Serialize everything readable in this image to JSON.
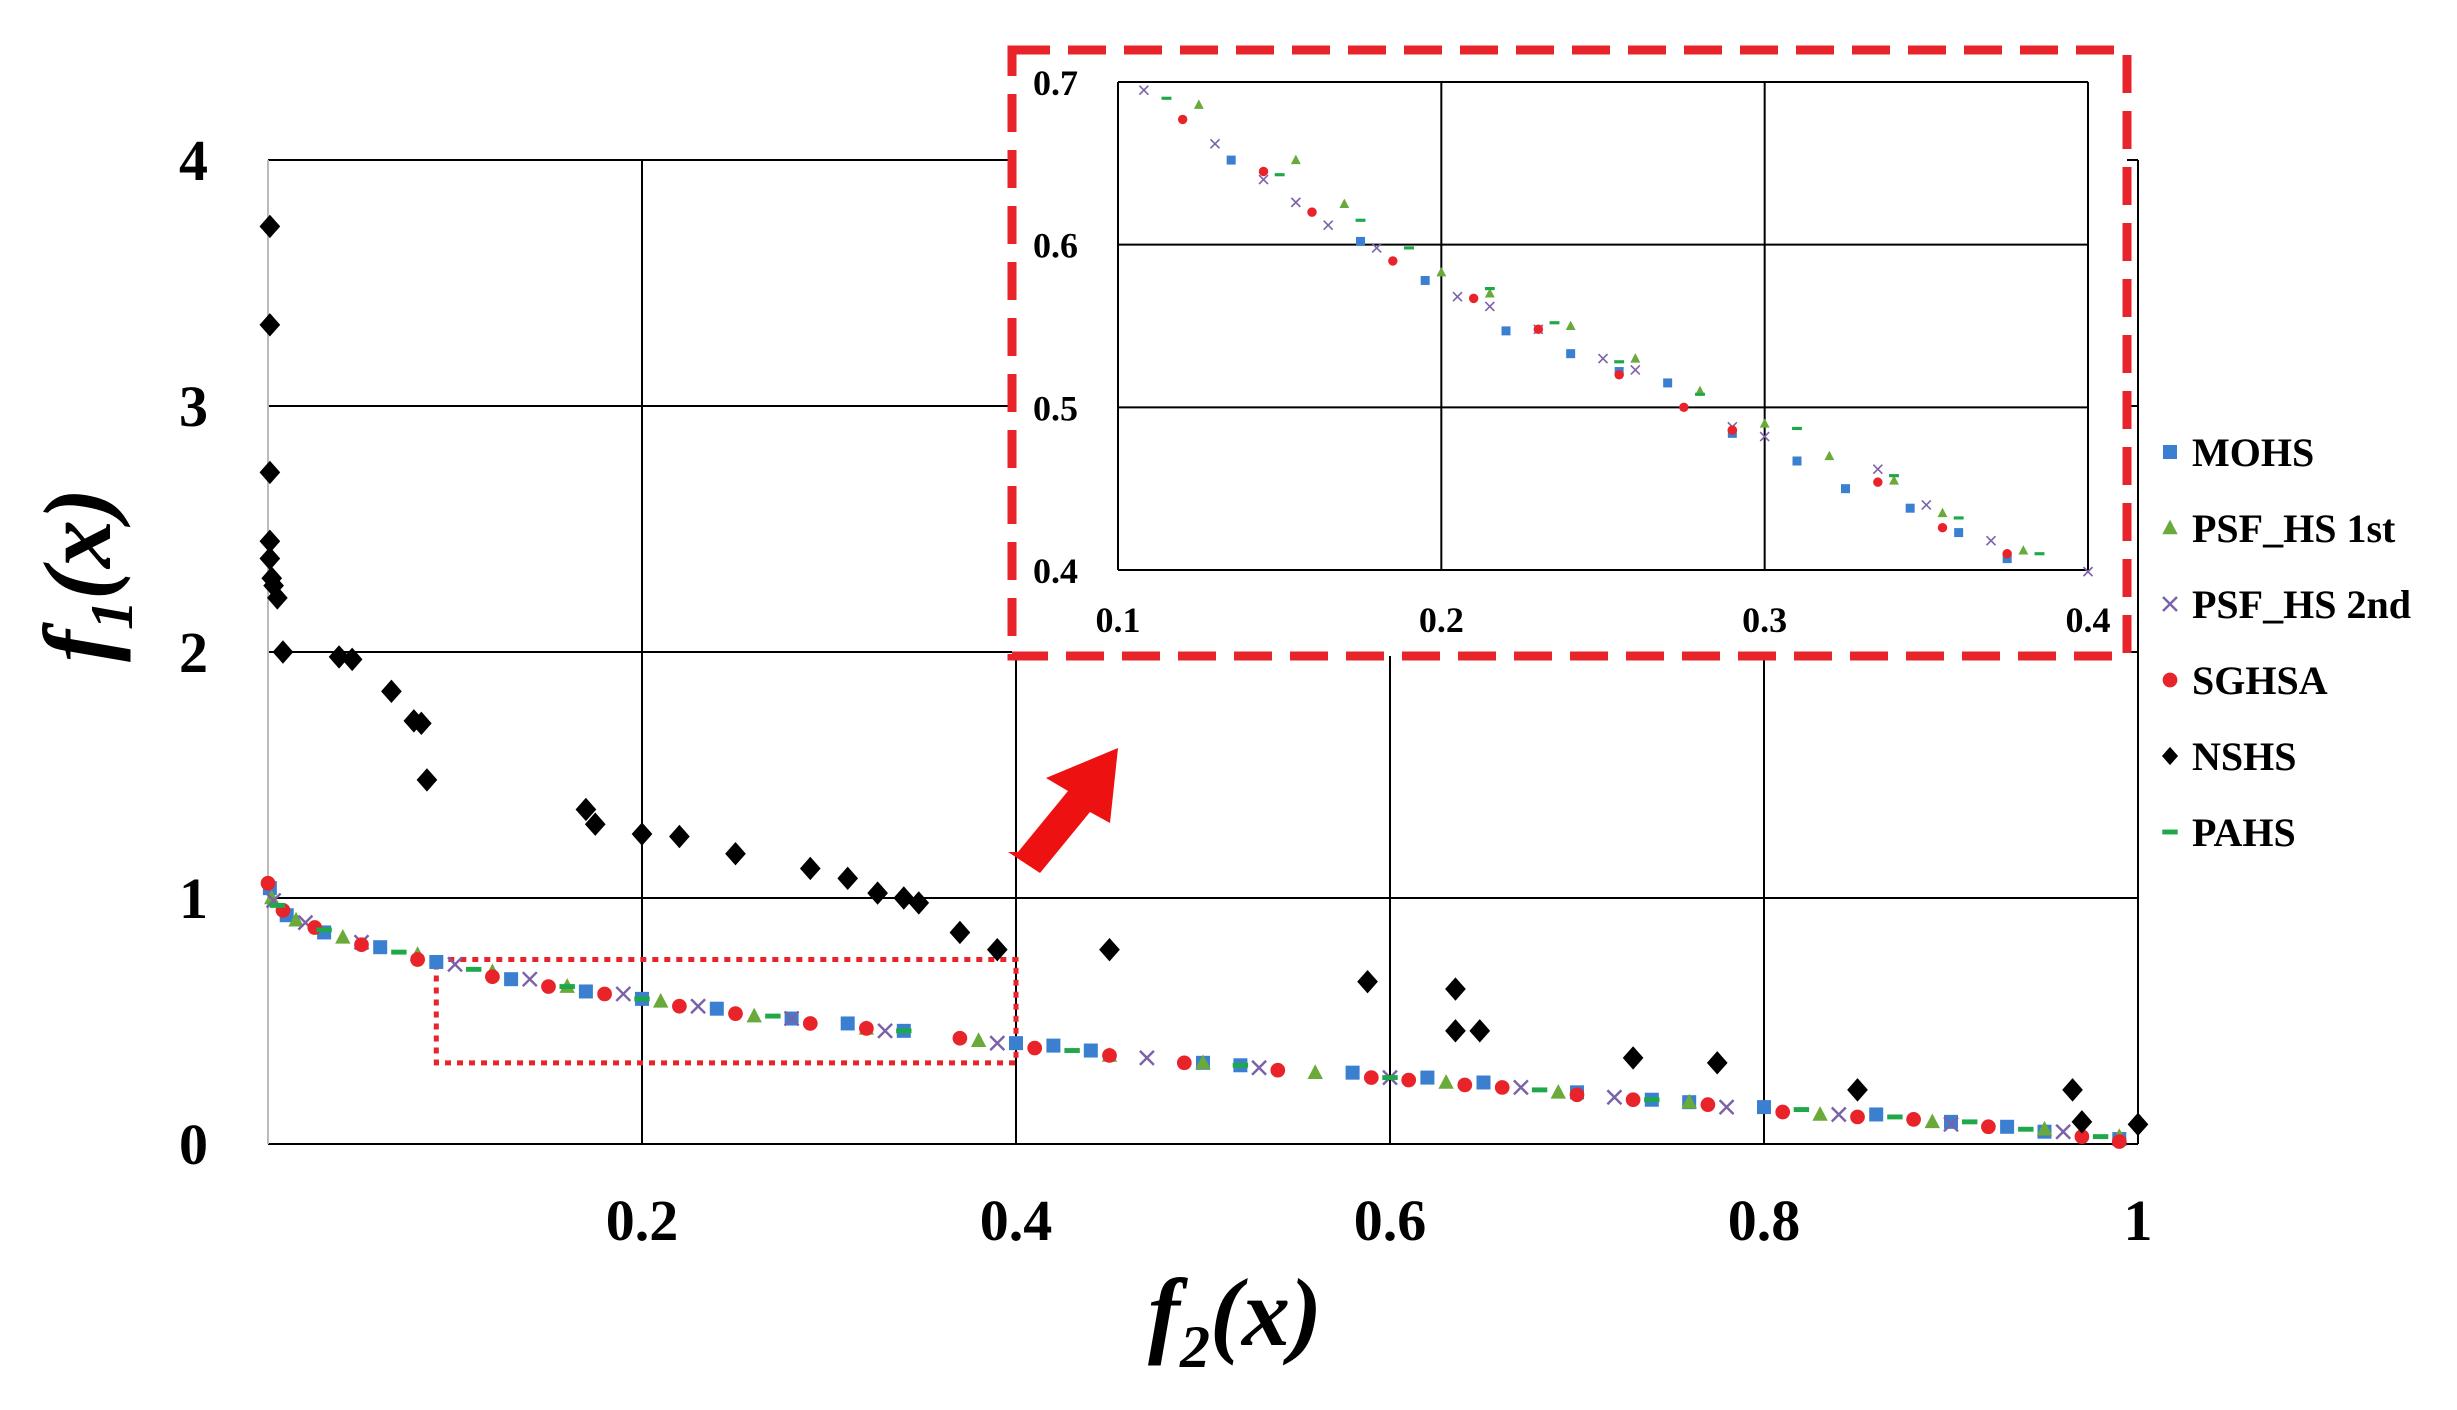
{
  "chart_data": [
    {
      "type": "scatter",
      "xlabel": "f",
      "xlabel_sub": "2",
      "xlabel_suffix": "(x)",
      "ylabel": "f",
      "ylabel_sub": "1",
      "ylabel_suffix": "(x)",
      "xlim": [
        0,
        1
      ],
      "ylim": [
        0,
        4
      ],
      "x_ticks": [
        0.2,
        0.4,
        0.6,
        0.8,
        1
      ],
      "x_tick_labels": [
        "0.2",
        "0.4",
        "0.6",
        "0.8",
        "1"
      ],
      "y_ticks": [
        0,
        1,
        2,
        3,
        4
      ],
      "y_tick_labels": [
        "0",
        "1",
        "2",
        "3",
        "4"
      ],
      "grid": true,
      "legend_position": "right",
      "highlight_box": {
        "x": [
          0.09,
          0.4
        ],
        "y": [
          0.33,
          0.75
        ]
      },
      "series": [
        {
          "name": "MOHS",
          "marker": "square",
          "color": "#3b7fd1",
          "x": [
            0.001,
            0.01,
            0.03,
            0.06,
            0.09,
            0.13,
            0.17,
            0.2,
            0.24,
            0.28,
            0.31,
            0.34,
            0.4,
            0.42,
            0.44,
            0.5,
            0.52,
            0.58,
            0.62,
            0.65,
            0.7,
            0.74,
            0.76,
            0.8,
            0.86,
            0.9,
            0.93,
            0.95,
            0.99
          ],
          "y": [
            1.04,
            0.93,
            0.86,
            0.8,
            0.74,
            0.67,
            0.62,
            0.59,
            0.55,
            0.51,
            0.49,
            0.46,
            0.41,
            0.4,
            0.38,
            0.33,
            0.32,
            0.29,
            0.27,
            0.25,
            0.21,
            0.18,
            0.17,
            0.15,
            0.12,
            0.09,
            0.07,
            0.05,
            0.02
          ]
        },
        {
          "name": "PSF_HS 1st",
          "marker": "triangle",
          "color": "#6aaa3a",
          "x": [
            0.002,
            0.015,
            0.04,
            0.08,
            0.12,
            0.16,
            0.21,
            0.26,
            0.32,
            0.38,
            0.45,
            0.5,
            0.56,
            0.63,
            0.69,
            0.76,
            0.83,
            0.89,
            0.95,
            0.99
          ],
          "y": [
            1.0,
            0.91,
            0.84,
            0.77,
            0.7,
            0.64,
            0.58,
            0.52,
            0.47,
            0.42,
            0.36,
            0.33,
            0.29,
            0.25,
            0.21,
            0.17,
            0.12,
            0.09,
            0.06,
            0.03
          ]
        },
        {
          "name": "PSF_HS 2nd",
          "marker": "x",
          "color": "#7b62a8",
          "x": [
            0.003,
            0.02,
            0.05,
            0.1,
            0.14,
            0.19,
            0.23,
            0.28,
            0.33,
            0.39,
            0.47,
            0.53,
            0.6,
            0.67,
            0.72,
            0.78,
            0.84,
            0.9,
            0.96
          ],
          "y": [
            0.99,
            0.9,
            0.82,
            0.73,
            0.67,
            0.61,
            0.56,
            0.51,
            0.46,
            0.41,
            0.35,
            0.31,
            0.27,
            0.23,
            0.19,
            0.15,
            0.12,
            0.08,
            0.05
          ]
        },
        {
          "name": "SGHSA",
          "marker": "circle",
          "color": "#e8232a",
          "x": [
            0.0,
            0.008,
            0.025,
            0.05,
            0.08,
            0.12,
            0.15,
            0.18,
            0.22,
            0.25,
            0.29,
            0.32,
            0.37,
            0.41,
            0.45,
            0.49,
            0.54,
            0.59,
            0.61,
            0.64,
            0.66,
            0.7,
            0.73,
            0.77,
            0.81,
            0.85,
            0.88,
            0.92,
            0.97,
            0.99
          ],
          "y": [
            1.06,
            0.95,
            0.88,
            0.81,
            0.75,
            0.68,
            0.64,
            0.61,
            0.56,
            0.53,
            0.49,
            0.47,
            0.43,
            0.39,
            0.36,
            0.33,
            0.3,
            0.27,
            0.26,
            0.24,
            0.23,
            0.2,
            0.18,
            0.16,
            0.13,
            0.11,
            0.1,
            0.07,
            0.03,
            0.01
          ]
        },
        {
          "name": "NSHS",
          "marker": "diamond",
          "color": "#000000",
          "x": [
            0.001,
            0.001,
            0.001,
            0.001,
            0.001,
            0.002,
            0.003,
            0.005,
            0.008,
            0.038,
            0.045,
            0.066,
            0.078,
            0.082,
            0.085,
            0.17,
            0.175,
            0.2,
            0.22,
            0.25,
            0.29,
            0.31,
            0.326,
            0.34,
            0.348,
            0.37,
            0.39,
            0.45,
            0.588,
            0.635,
            0.635,
            0.648,
            0.73,
            0.775,
            0.85,
            0.965,
            0.97,
            1.0
          ],
          "y": [
            3.73,
            3.33,
            2.73,
            2.45,
            2.38,
            2.3,
            2.27,
            2.22,
            2.0,
            1.98,
            1.97,
            1.84,
            1.72,
            1.71,
            1.48,
            1.36,
            1.3,
            1.26,
            1.25,
            1.18,
            1.12,
            1.08,
            1.02,
            1.0,
            0.98,
            0.86,
            0.79,
            0.79,
            0.66,
            0.63,
            0.46,
            0.46,
            0.35,
            0.33,
            0.22,
            0.22,
            0.09,
            0.08
          ]
        },
        {
          "name": "PAHS",
          "marker": "dash",
          "color": "#1ea84a",
          "x": [
            0.005,
            0.03,
            0.07,
            0.11,
            0.16,
            0.2,
            0.27,
            0.34,
            0.43,
            0.52,
            0.6,
            0.68,
            0.74,
            0.82,
            0.87,
            0.91,
            0.94,
            0.98
          ],
          "y": [
            0.97,
            0.87,
            0.78,
            0.71,
            0.64,
            0.59,
            0.52,
            0.46,
            0.38,
            0.32,
            0.27,
            0.22,
            0.18,
            0.14,
            0.11,
            0.09,
            0.06,
            0.03
          ]
        }
      ]
    },
    {
      "type": "scatter",
      "role": "inset-zoom",
      "xlim": [
        0.1,
        0.4
      ],
      "ylim": [
        0.4,
        0.7
      ],
      "x_ticks": [
        0.1,
        0.2,
        0.3,
        0.4
      ],
      "x_tick_labels": [
        "0.1",
        "0.2",
        "0.3",
        "0.4"
      ],
      "y_ticks": [
        0.4,
        0.5,
        0.6,
        0.7
      ],
      "y_tick_labels": [
        "0.4",
        "0.5",
        "0.6",
        "0.7"
      ],
      "grid": true,
      "series": [
        {
          "name": "MOHS",
          "marker": "square",
          "color": "#3b7fd1",
          "x": [
            0.135,
            0.175,
            0.195,
            0.22,
            0.24,
            0.255,
            0.27,
            0.29,
            0.31,
            0.325,
            0.345,
            0.36,
            0.375
          ],
          "y": [
            0.652,
            0.602,
            0.578,
            0.547,
            0.533,
            0.522,
            0.515,
            0.484,
            0.467,
            0.45,
            0.438,
            0.423,
            0.407
          ]
        },
        {
          "name": "PSF_HS 1st",
          "marker": "triangle",
          "color": "#6aaa3a",
          "x": [
            0.125,
            0.155,
            0.17,
            0.2,
            0.215,
            0.24,
            0.26,
            0.28,
            0.3,
            0.32,
            0.34,
            0.355,
            0.38
          ],
          "y": [
            0.686,
            0.652,
            0.625,
            0.583,
            0.57,
            0.55,
            0.53,
            0.51,
            0.49,
            0.47,
            0.455,
            0.435,
            0.412
          ]
        },
        {
          "name": "PSF_HS 2nd",
          "marker": "x",
          "color": "#7b62a8",
          "x": [
            0.108,
            0.13,
            0.145,
            0.155,
            0.165,
            0.18,
            0.205,
            0.215,
            0.23,
            0.25,
            0.26,
            0.29,
            0.3,
            0.335,
            0.35,
            0.37,
            0.4
          ],
          "y": [
            0.695,
            0.662,
            0.64,
            0.626,
            0.612,
            0.598,
            0.568,
            0.562,
            0.548,
            0.53,
            0.523,
            0.488,
            0.482,
            0.462,
            0.44,
            0.418,
            0.399
          ]
        },
        {
          "name": "SGHSA",
          "marker": "circle",
          "color": "#e8232a",
          "x": [
            0.12,
            0.145,
            0.16,
            0.185,
            0.21,
            0.23,
            0.255,
            0.275,
            0.29,
            0.335,
            0.355,
            0.375
          ],
          "y": [
            0.677,
            0.645,
            0.62,
            0.59,
            0.567,
            0.548,
            0.52,
            0.5,
            0.486,
            0.454,
            0.426,
            0.41
          ]
        },
        {
          "name": "PAHS",
          "marker": "dash",
          "color": "#1ea84a",
          "x": [
            0.115,
            0.15,
            0.175,
            0.19,
            0.215,
            0.235,
            0.255,
            0.28,
            0.31,
            0.34,
            0.36,
            0.385
          ],
          "y": [
            0.69,
            0.643,
            0.615,
            0.598,
            0.573,
            0.552,
            0.528,
            0.508,
            0.487,
            0.458,
            0.432,
            0.41
          ]
        }
      ]
    }
  ],
  "legend": {
    "items": [
      {
        "label": "MOHS",
        "marker": "square",
        "color": "#3b7fd1"
      },
      {
        "label": "PSF_HS 1st",
        "marker": "triangle",
        "color": "#6aaa3a"
      },
      {
        "label": "PSF_HS 2nd",
        "marker": "x",
        "color": "#7b62a8"
      },
      {
        "label": "SGHSA",
        "marker": "circle",
        "color": "#e8232a"
      },
      {
        "label": "NSHS",
        "marker": "diamond",
        "color": "#000000"
      },
      {
        "label": "PAHS",
        "marker": "dash",
        "color": "#1ea84a"
      }
    ]
  },
  "colors": {
    "highlight": "#e8232a",
    "grid": "#000000"
  }
}
